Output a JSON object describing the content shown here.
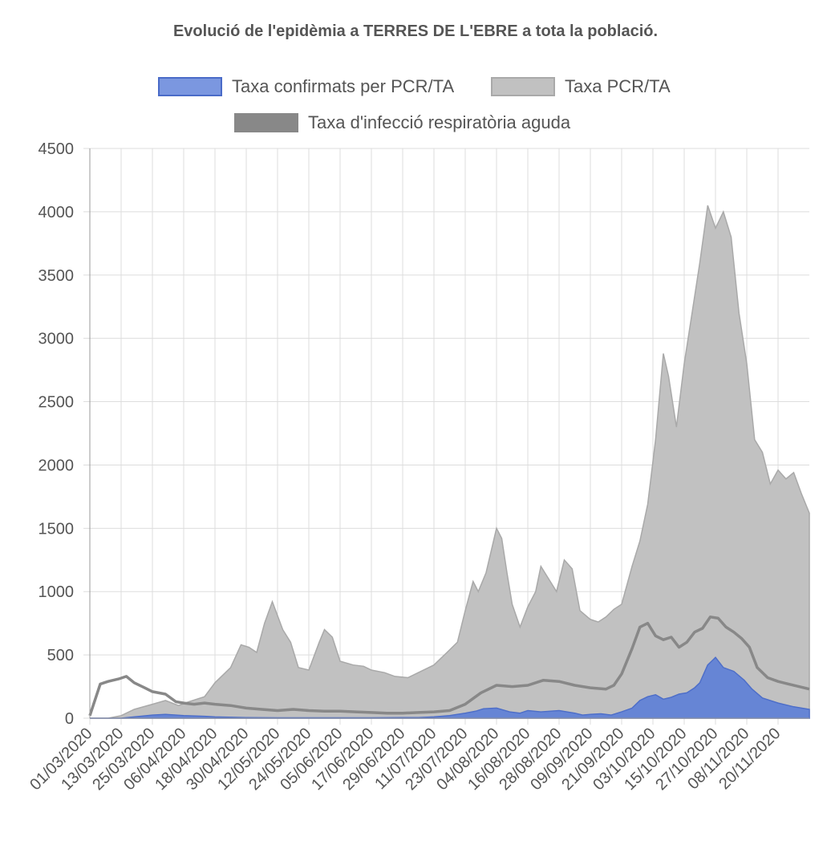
{
  "chart_data": {
    "type": "area",
    "title": "Evolució de l'epidèmia a TERRES DE L'EBRE a tota la població.",
    "xlabel": "",
    "ylabel": "",
    "ylim": [
      0,
      4500
    ],
    "yticks": [
      0,
      500,
      1000,
      1500,
      2000,
      2500,
      3000,
      3500,
      4000,
      4500
    ],
    "grid": true,
    "legend_position": "top",
    "categories": [
      "01/03/2020",
      "13/03/2020",
      "25/03/2020",
      "06/04/2020",
      "18/04/2020",
      "30/04/2020",
      "12/05/2020",
      "24/05/2020",
      "05/06/2020",
      "17/06/2020",
      "29/06/2020",
      "11/07/2020",
      "23/07/2020",
      "04/08/2020",
      "16/08/2020",
      "28/08/2020",
      "09/09/2020",
      "21/09/2020",
      "03/10/2020",
      "15/10/2020",
      "27/10/2020",
      "08/11/2020",
      "20/11/2020"
    ],
    "x_start": "01/03/2020",
    "x_end": "02/12/2020",
    "series": [
      {
        "name": "Taxa confirmats per PCR/TA",
        "color": "#4a6bc8",
        "fill": "#7b97e0",
        "points": [
          [
            "01/03/2020",
            0
          ],
          [
            "13/03/2020",
            0
          ],
          [
            "18/03/2020",
            10
          ],
          [
            "25/03/2020",
            25
          ],
          [
            "30/03/2020",
            30
          ],
          [
            "06/04/2020",
            20
          ],
          [
            "14/04/2020",
            15
          ],
          [
            "18/04/2020",
            10
          ],
          [
            "30/04/2020",
            5
          ],
          [
            "12/05/2020",
            3
          ],
          [
            "24/05/2020",
            3
          ],
          [
            "05/06/2020",
            3
          ],
          [
            "17/06/2020",
            3
          ],
          [
            "29/06/2020",
            5
          ],
          [
            "05/07/2020",
            5
          ],
          [
            "11/07/2020",
            10
          ],
          [
            "17/07/2020",
            20
          ],
          [
            "23/07/2020",
            40
          ],
          [
            "27/07/2020",
            55
          ],
          [
            "30/07/2020",
            75
          ],
          [
            "04/08/2020",
            80
          ],
          [
            "09/08/2020",
            50
          ],
          [
            "13/08/2020",
            40
          ],
          [
            "16/08/2020",
            60
          ],
          [
            "21/08/2020",
            50
          ],
          [
            "28/08/2020",
            60
          ],
          [
            "03/09/2020",
            40
          ],
          [
            "06/09/2020",
            25
          ],
          [
            "09/09/2020",
            30
          ],
          [
            "13/09/2020",
            35
          ],
          [
            "17/09/2020",
            25
          ],
          [
            "21/09/2020",
            50
          ],
          [
            "25/09/2020",
            80
          ],
          [
            "28/09/2020",
            140
          ],
          [
            "01/10/2020",
            170
          ],
          [
            "04/10/2020",
            185
          ],
          [
            "07/10/2020",
            150
          ],
          [
            "10/10/2020",
            165
          ],
          [
            "13/10/2020",
            190
          ],
          [
            "16/10/2020",
            200
          ],
          [
            "19/10/2020",
            240
          ],
          [
            "21/10/2020",
            280
          ],
          [
            "24/10/2020",
            420
          ],
          [
            "27/10/2020",
            480
          ],
          [
            "30/10/2020",
            400
          ],
          [
            "03/11/2020",
            370
          ],
          [
            "07/11/2020",
            300
          ],
          [
            "10/11/2020",
            230
          ],
          [
            "14/11/2020",
            160
          ],
          [
            "20/11/2020",
            120
          ],
          [
            "26/11/2020",
            90
          ],
          [
            "02/12/2020",
            70
          ]
        ]
      },
      {
        "name": "Taxa PCR/TA",
        "color": "#a9a9a9",
        "fill": "#c1c1c1",
        "points": [
          [
            "01/03/2020",
            0
          ],
          [
            "08/03/2020",
            0
          ],
          [
            "13/03/2020",
            20
          ],
          [
            "18/03/2020",
            70
          ],
          [
            "25/03/2020",
            110
          ],
          [
            "30/03/2020",
            140
          ],
          [
            "04/04/2020",
            100
          ],
          [
            "08/04/2020",
            130
          ],
          [
            "14/04/2020",
            170
          ],
          [
            "18/04/2020",
            280
          ],
          [
            "24/04/2020",
            400
          ],
          [
            "28/04/2020",
            580
          ],
          [
            "01/05/2020",
            560
          ],
          [
            "04/05/2020",
            520
          ],
          [
            "07/05/2020",
            750
          ],
          [
            "10/05/2020",
            920
          ],
          [
            "14/05/2020",
            700
          ],
          [
            "17/05/2020",
            600
          ],
          [
            "20/05/2020",
            400
          ],
          [
            "24/05/2020",
            380
          ],
          [
            "28/05/2020",
            600
          ],
          [
            "30/05/2020",
            700
          ],
          [
            "02/06/2020",
            640
          ],
          [
            "05/06/2020",
            450
          ],
          [
            "10/06/2020",
            420
          ],
          [
            "14/06/2020",
            410
          ],
          [
            "17/06/2020",
            380
          ],
          [
            "22/06/2020",
            360
          ],
          [
            "26/06/2020",
            330
          ],
          [
            "01/07/2020",
            320
          ],
          [
            "05/07/2020",
            360
          ],
          [
            "11/07/2020",
            420
          ],
          [
            "16/07/2020",
            520
          ],
          [
            "20/07/2020",
            600
          ],
          [
            "23/07/2020",
            850
          ],
          [
            "26/07/2020",
            1080
          ],
          [
            "28/07/2020",
            1000
          ],
          [
            "31/07/2020",
            1150
          ],
          [
            "04/08/2020",
            1500
          ],
          [
            "06/08/2020",
            1420
          ],
          [
            "08/08/2020",
            1150
          ],
          [
            "10/08/2020",
            900
          ],
          [
            "13/08/2020",
            720
          ],
          [
            "16/08/2020",
            880
          ],
          [
            "19/08/2020",
            1000
          ],
          [
            "21/08/2020",
            1200
          ],
          [
            "24/08/2020",
            1100
          ],
          [
            "27/08/2020",
            1000
          ],
          [
            "30/08/2020",
            1250
          ],
          [
            "02/09/2020",
            1180
          ],
          [
            "05/09/2020",
            850
          ],
          [
            "09/09/2020",
            780
          ],
          [
            "12/09/2020",
            760
          ],
          [
            "15/09/2020",
            800
          ],
          [
            "18/09/2020",
            860
          ],
          [
            "21/09/2020",
            900
          ],
          [
            "25/09/2020",
            1200
          ],
          [
            "28/09/2020",
            1400
          ],
          [
            "01/10/2020",
            1690
          ],
          [
            "04/10/2020",
            2200
          ],
          [
            "07/10/2020",
            2880
          ],
          [
            "09/10/2020",
            2700
          ],
          [
            "12/10/2020",
            2300
          ],
          [
            "15/10/2020",
            2800
          ],
          [
            "18/10/2020",
            3200
          ],
          [
            "21/10/2020",
            3600
          ],
          [
            "24/10/2020",
            4050
          ],
          [
            "27/10/2020",
            3870
          ],
          [
            "30/10/2020",
            4000
          ],
          [
            "02/11/2020",
            3800
          ],
          [
            "05/11/2020",
            3200
          ],
          [
            "08/11/2020",
            2800
          ],
          [
            "11/11/2020",
            2200
          ],
          [
            "14/11/2020",
            2100
          ],
          [
            "17/11/2020",
            1850
          ],
          [
            "20/11/2020",
            1960
          ],
          [
            "23/11/2020",
            1890
          ],
          [
            "26/11/2020",
            1940
          ],
          [
            "29/11/2020",
            1770
          ],
          [
            "02/12/2020",
            1620
          ]
        ]
      },
      {
        "name": "Taxa d'infecció respiratòria aguda",
        "color": "#888888",
        "points": [
          [
            "01/03/2020",
            20
          ],
          [
            "05/03/2020",
            270
          ],
          [
            "08/03/2020",
            290
          ],
          [
            "12/03/2020",
            310
          ],
          [
            "15/03/2020",
            330
          ],
          [
            "18/03/2020",
            280
          ],
          [
            "22/03/2020",
            240
          ],
          [
            "25/03/2020",
            210
          ],
          [
            "30/03/2020",
            190
          ],
          [
            "03/04/2020",
            130
          ],
          [
            "06/04/2020",
            120
          ],
          [
            "10/04/2020",
            110
          ],
          [
            "14/04/2020",
            120
          ],
          [
            "18/04/2020",
            110
          ],
          [
            "24/04/2020",
            100
          ],
          [
            "30/04/2020",
            80
          ],
          [
            "06/05/2020",
            70
          ],
          [
            "12/05/2020",
            60
          ],
          [
            "18/05/2020",
            70
          ],
          [
            "24/05/2020",
            60
          ],
          [
            "30/05/2020",
            55
          ],
          [
            "05/06/2020",
            55
          ],
          [
            "11/06/2020",
            50
          ],
          [
            "17/06/2020",
            45
          ],
          [
            "23/06/2020",
            40
          ],
          [
            "29/06/2020",
            40
          ],
          [
            "05/07/2020",
            45
          ],
          [
            "11/07/2020",
            50
          ],
          [
            "17/07/2020",
            60
          ],
          [
            "23/07/2020",
            110
          ],
          [
            "29/07/2020",
            200
          ],
          [
            "04/08/2020",
            260
          ],
          [
            "10/08/2020",
            250
          ],
          [
            "16/08/2020",
            260
          ],
          [
            "22/08/2020",
            300
          ],
          [
            "28/08/2020",
            290
          ],
          [
            "03/09/2020",
            260
          ],
          [
            "09/09/2020",
            240
          ],
          [
            "15/09/2020",
            230
          ],
          [
            "18/09/2020",
            260
          ],
          [
            "21/09/2020",
            350
          ],
          [
            "25/09/2020",
            550
          ],
          [
            "28/09/2020",
            720
          ],
          [
            "01/10/2020",
            750
          ],
          [
            "04/10/2020",
            650
          ],
          [
            "07/10/2020",
            620
          ],
          [
            "10/10/2020",
            640
          ],
          [
            "13/10/2020",
            560
          ],
          [
            "16/10/2020",
            600
          ],
          [
            "19/10/2020",
            680
          ],
          [
            "22/10/2020",
            710
          ],
          [
            "25/10/2020",
            800
          ],
          [
            "28/10/2020",
            790
          ],
          [
            "31/10/2020",
            720
          ],
          [
            "03/11/2020",
            680
          ],
          [
            "06/11/2020",
            630
          ],
          [
            "09/11/2020",
            560
          ],
          [
            "12/11/2020",
            400
          ],
          [
            "16/11/2020",
            320
          ],
          [
            "20/11/2020",
            290
          ],
          [
            "24/11/2020",
            270
          ],
          [
            "28/11/2020",
            250
          ],
          [
            "02/12/2020",
            230
          ]
        ]
      }
    ]
  }
}
